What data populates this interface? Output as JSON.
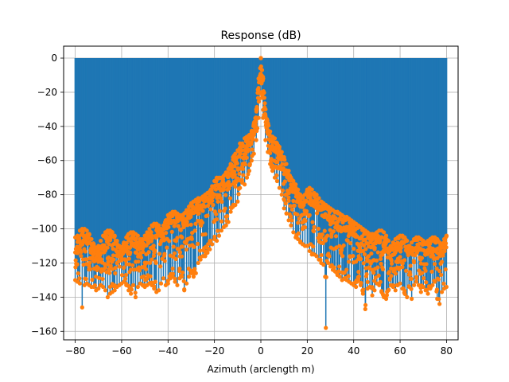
{
  "chart_data": {
    "type": "line",
    "title": "Response (dB)",
    "xlabel": "Azimuth (arclength m)",
    "ylabel": "",
    "xlim": [
      -85,
      85
    ],
    "ylim": [
      -165,
      7
    ],
    "xticks": [
      -80,
      -60,
      -40,
      -20,
      0,
      20,
      40,
      60,
      80
    ],
    "yticks": [
      0,
      -20,
      -40,
      -60,
      -80,
      -100,
      -120,
      -140,
      -160
    ],
    "xtick_labels": [
      "−80",
      "−60",
      "−40",
      "−20",
      "0",
      "20",
      "40",
      "60",
      "80"
    ],
    "ytick_labels": [
      "0",
      "−20",
      "−40",
      "−60",
      "−80",
      "−100",
      "−120",
      "−140",
      "−160"
    ],
    "grid": true,
    "colors": {
      "stem": "#1f77b4",
      "marker": "#ff7f0e"
    },
    "series": [
      {
        "style": "stem",
        "x": [
          -80,
          -79,
          -78,
          -77,
          -76,
          -75,
          -74,
          -73,
          -72,
          -71,
          -70,
          -69,
          -68,
          -67,
          -66,
          -65,
          -64,
          -63,
          -62,
          -61,
          -60,
          -59,
          -58,
          -57,
          -56,
          -55,
          -54,
          -53,
          -52,
          -51,
          -50,
          -49,
          -48,
          -47,
          -46,
          -45,
          -44,
          -43,
          -42,
          -41,
          -40,
          -39,
          -38,
          -37,
          -36,
          -35,
          -34,
          -33,
          -32,
          -31,
          -30,
          -29,
          -28,
          -27,
          -26,
          -25,
          -24,
          -23,
          -22,
          -21,
          -20,
          -19,
          -18,
          -17,
          -16,
          -15,
          -14,
          -13,
          -12,
          -11,
          -10,
          -9,
          -8,
          -7,
          -6,
          -5,
          -4,
          -3,
          -2,
          -1,
          0,
          1,
          2,
          3,
          4,
          5,
          6,
          7,
          8,
          9,
          10,
          11,
          12,
          13,
          14,
          15,
          16,
          17,
          18,
          19,
          20,
          21,
          22,
          23,
          24,
          25,
          26,
          27,
          28,
          29,
          30,
          31,
          32,
          33,
          34,
          35,
          36,
          37,
          38,
          39,
          40,
          41,
          42,
          43,
          44,
          45,
          46,
          47,
          48,
          49,
          50,
          51,
          52,
          53,
          54,
          55,
          56,
          57,
          58,
          59,
          60,
          61,
          62,
          63,
          64,
          65,
          66,
          67,
          68,
          69,
          70,
          71,
          72,
          73,
          74,
          75,
          76,
          77,
          78,
          79,
          80
        ],
        "envelope_top": [
          -105,
          -104,
          -101,
          -100,
          -100,
          -101,
          -103,
          -106,
          -109,
          -111,
          -110,
          -107,
          -104,
          -102,
          -101,
          -101,
          -102,
          -104,
          -107,
          -110,
          -111,
          -108,
          -105,
          -103,
          -102,
          -102,
          -103,
          -104,
          -106,
          -106,
          -104,
          -102,
          -100,
          -98,
          -97,
          -97,
          -98,
          -100,
          -98,
          -95,
          -92,
          -91,
          -90,
          -90,
          -91,
          -92,
          -92,
          -91,
          -89,
          -87,
          -85,
          -84,
          -83,
          -82,
          -82,
          -81,
          -80,
          -79,
          -78,
          -75,
          -72,
          -70,
          -70,
          -70,
          -69,
          -67,
          -65,
          -62,
          -58,
          -56,
          -54,
          -50,
          -50,
          -47,
          -46,
          -45,
          -43,
          -38,
          -30,
          -12,
          0,
          -12,
          -30,
          -38,
          -43,
          -46,
          -47,
          -50,
          -52,
          -55,
          -58,
          -62,
          -66,
          -70,
          -72,
          -74,
          -77,
          -80,
          -81,
          -80,
          -77,
          -76,
          -77,
          -79,
          -80,
          -82,
          -84,
          -85,
          -86,
          -87,
          -88,
          -89,
          -90,
          -90,
          -91,
          -92,
          -93,
          -93,
          -94,
          -95,
          -96,
          -97,
          -98,
          -99,
          -100,
          -101,
          -102,
          -103,
          -103,
          -103,
          -102,
          -101,
          -101,
          -102,
          -104,
          -107,
          -110,
          -108,
          -106,
          -105,
          -104,
          -104,
          -105,
          -107,
          -110,
          -108,
          -106,
          -105,
          -105,
          -106,
          -107,
          -108,
          -107,
          -106,
          -105,
          -105,
          -106,
          -108,
          -109,
          -106,
          -104
        ],
        "envelope_bottom": [
          -130,
          -131,
          -132,
          -146,
          -133,
          -132,
          -133,
          -134,
          -134,
          -136,
          -135,
          -133,
          -134,
          -136,
          -140,
          -138,
          -137,
          -136,
          -134,
          -133,
          -132,
          -131,
          -133,
          -136,
          -138,
          -133,
          -140,
          -134,
          -132,
          -133,
          -134,
          -133,
          -132,
          -133,
          -135,
          -137,
          -136,
          -132,
          -129,
          -133,
          -132,
          -129,
          -128,
          -131,
          -133,
          -129,
          -128,
          -136,
          -132,
          -128,
          -126,
          -128,
          -126,
          -120,
          -118,
          -116,
          -116,
          -114,
          -112,
          -109,
          -106,
          -107,
          -104,
          -101,
          -99,
          -98,
          -96,
          -90,
          -87,
          -86,
          -84,
          -76,
          -73,
          -74,
          -70,
          -66,
          -60,
          -56,
          -48,
          -35,
          -20,
          -35,
          -48,
          -55,
          -62,
          -66,
          -70,
          -72,
          -76,
          -80,
          -88,
          -91,
          -95,
          -98,
          -102,
          -105,
          -106,
          -108,
          -109,
          -110,
          -110,
          -113,
          -115,
          -115,
          -116,
          -118,
          -120,
          -121,
          -158,
          -120,
          -122,
          -124,
          -125,
          -127,
          -128,
          -130,
          -129,
          -130,
          -131,
          -132,
          -133,
          -134,
          -130,
          -133,
          -138,
          -147,
          -135,
          -134,
          -139,
          -136,
          -132,
          -133,
          -137,
          -140,
          -141,
          -136,
          -133,
          -134,
          -136,
          -133,
          -132,
          -135,
          -138,
          -140,
          -134,
          -141,
          -133,
          -131,
          -133,
          -137,
          -134,
          -136,
          -138,
          -135,
          -133,
          -131,
          -141,
          -144,
          -137,
          -135,
          -134
        ]
      }
    ]
  }
}
